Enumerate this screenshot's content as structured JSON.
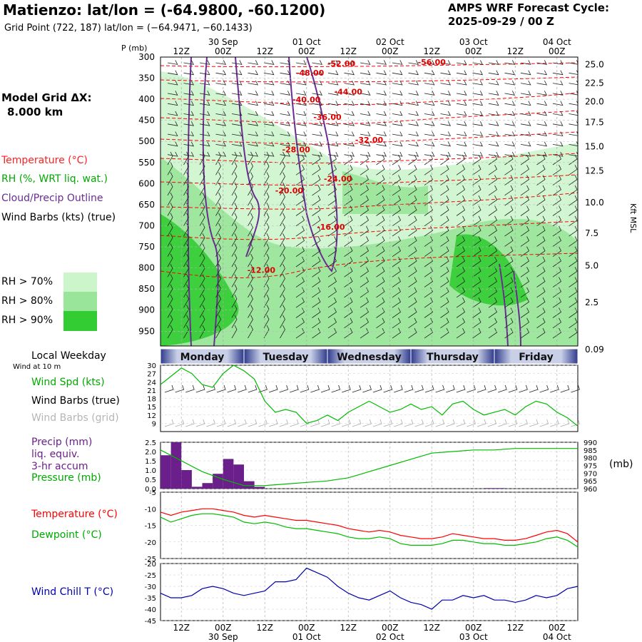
{
  "header": {
    "title": "Matienzo:  lat/lon = (-64.9800, -60.1200)",
    "subtitle": "Grid Point (722, 187) lat/lon = (−64.9471, −60.1433)",
    "cycle_line1": "AMPS WRF Forecast Cycle:",
    "cycle_line2": "2025-09-29 / 00  Z"
  },
  "legend": {
    "model_grid_line1": "Model Grid ΔX:",
    "model_grid_line2": "8.000 km",
    "temperature": "Temperature (°C)",
    "rh": "RH (%, WRT liq. wat.)",
    "cloud": "Cloud/Precip Outline",
    "wind_barbs": "Wind Barbs (kts) (true)",
    "rh70": "RH > 70%",
    "rh80": "RH > 80%",
    "rh90": "RH > 90%",
    "colors": {
      "rh70": "#ccf5cc",
      "rh80": "#99e599",
      "rh90": "#33cc33"
    }
  },
  "axis_labels": {
    "p_label": "P (mb)",
    "kft_label": "Kft MSL",
    "local_weekday": "Local Weekday",
    "wind_at_10m": "Wind at 10 m",
    "wind_spd": "Wind Spd (kts)",
    "wind_barbs_true": "Wind Barbs (true)",
    "wind_barbs_grid": "Wind Barbs (grid)",
    "precip1": "Precip (mm)",
    "precip2": "liq. equiv.",
    "precip3": "3-hr accum",
    "pressure": "Pressure (mb)",
    "mb_unit": "(mb)",
    "temp": "Temperature (°C)",
    "dewpoint": "Dewpoint (°C)",
    "wind_chill": "Wind Chill T (°C)"
  },
  "colors": {
    "temperature": "#ff0000",
    "dewpoint": "#00bb00",
    "cloud": "#6a2c91",
    "precip": "#6a1f8a",
    "windchill": "#0000aa",
    "wind": "#00bb00",
    "pressure": "#00bb00"
  },
  "chart_data": [
    {
      "type": "time-height",
      "x_hours_range": [
        6,
        126
      ],
      "time_ticks": [
        {
          "hour": 12,
          "label": "12Z",
          "date": ""
        },
        {
          "hour": 24,
          "label": "00Z",
          "date": "30 Sep"
        },
        {
          "hour": 36,
          "label": "12Z",
          "date": ""
        },
        {
          "hour": 48,
          "label": "00Z",
          "date": "01 Oct"
        },
        {
          "hour": 60,
          "label": "12Z",
          "date": ""
        },
        {
          "hour": 72,
          "label": "00Z",
          "date": "02 Oct"
        },
        {
          "hour": 84,
          "label": "12Z",
          "date": ""
        },
        {
          "hour": 96,
          "label": "00Z",
          "date": "03 Oct"
        },
        {
          "hour": 108,
          "label": "12Z",
          "date": ""
        },
        {
          "hour": 120,
          "label": "00Z",
          "date": "04 Oct"
        }
      ],
      "pressure_ticks": [
        300,
        350,
        400,
        450,
        500,
        550,
        600,
        650,
        700,
        750,
        800,
        850,
        900,
        950
      ],
      "kft_ticks": [
        {
          "p": 318,
          "label": "25.0"
        },
        {
          "p": 362,
          "label": "22.5"
        },
        {
          "p": 406,
          "label": "20.0"
        },
        {
          "p": 455,
          "label": "17.5"
        },
        {
          "p": 512,
          "label": "15.0"
        },
        {
          "p": 570,
          "label": "12.5"
        },
        {
          "p": 645,
          "label": "10.0"
        },
        {
          "p": 718,
          "label": "7.5"
        },
        {
          "p": 795,
          "label": "5.0"
        },
        {
          "p": 882,
          "label": "2.5"
        },
        {
          "p": 1005,
          "label": "0.09"
        }
      ],
      "temperature_labels": [
        {
          "hour": 58,
          "p": 322,
          "label": "-52.00"
        },
        {
          "hour": 84,
          "p": 319,
          "label": "-56.00"
        },
        {
          "hour": 49,
          "p": 344,
          "label": "-48.00"
        },
        {
          "hour": 60,
          "p": 389,
          "label": "-44.00"
        },
        {
          "hour": 48,
          "p": 407,
          "label": "-40.00"
        },
        {
          "hour": 54,
          "p": 449,
          "label": "-36.00"
        },
        {
          "hour": 66,
          "p": 503,
          "label": "-32.00"
        },
        {
          "hour": 45,
          "p": 526,
          "label": "-28.00"
        },
        {
          "hour": 57,
          "p": 595,
          "label": "-24.00"
        },
        {
          "hour": 43,
          "p": 623,
          "label": "-20.00"
        },
        {
          "hour": 55,
          "p": 709,
          "label": "-16.00"
        },
        {
          "hour": 35,
          "p": 812,
          "label": "-12.00"
        }
      ]
    },
    {
      "type": "line",
      "name": "wind-speed",
      "x_hours": [
        6,
        9,
        12,
        15,
        18,
        21,
        24,
        27,
        30,
        33,
        36,
        39,
        42,
        45,
        48,
        51,
        54,
        57,
        60,
        63,
        66,
        69,
        72,
        75,
        78,
        81,
        84,
        87,
        90,
        93,
        96,
        99,
        102,
        105,
        108,
        111,
        114,
        117,
        120,
        123,
        126
      ],
      "values": [
        23,
        26,
        29,
        27,
        23,
        22,
        27,
        30,
        28,
        25,
        17,
        13,
        14,
        13,
        9,
        10,
        12,
        10,
        13,
        15,
        17,
        15,
        13,
        14,
        16,
        14,
        15,
        12,
        16,
        17,
        14,
        12,
        13,
        14,
        12,
        15,
        17,
        16,
        13,
        11,
        8
      ],
      "ylim": [
        6,
        30
      ],
      "yticks": [
        9,
        12,
        15,
        18,
        21,
        24,
        27,
        30
      ]
    },
    {
      "type": "bar+line",
      "name": "precip-pressure",
      "precip_hours": [
        6,
        9,
        12,
        15,
        18,
        21,
        24,
        27,
        30,
        33,
        36,
        39,
        42,
        45,
        48,
        51,
        54,
        57,
        60,
        63,
        66,
        69,
        72,
        75,
        78,
        81,
        84,
        87,
        90,
        93,
        96,
        99,
        102,
        105,
        108,
        111,
        114,
        117,
        120,
        123
      ],
      "precip_values": [
        1.8,
        2.5,
        1.0,
        0.1,
        0.3,
        0.8,
        1.6,
        1.3,
        0.4,
        0.1,
        0,
        0,
        0,
        0,
        0,
        0,
        0,
        0,
        0,
        0,
        0,
        0,
        0,
        0,
        0,
        0,
        0,
        0,
        0,
        0,
        0,
        0.03,
        0.03,
        0,
        0,
        0,
        0,
        0,
        0,
        0
      ],
      "precip_ylim": [
        0,
        2.5
      ],
      "precip_yticks": [
        "0.0",
        "0.5",
        "1.0",
        "1.5",
        "2.0",
        "2.5"
      ],
      "pressure_hours": [
        6,
        12,
        18,
        24,
        30,
        36,
        42,
        48,
        54,
        60,
        66,
        72,
        78,
        84,
        90,
        96,
        102,
        108,
        114,
        120,
        126
      ],
      "pressure_values": [
        985,
        978,
        971,
        966,
        962,
        962,
        963,
        964,
        965,
        967,
        971,
        975,
        979,
        983,
        984,
        985,
        985,
        986,
        986,
        986,
        986
      ],
      "pressure_ylim": [
        960,
        990
      ],
      "pressure_yticks": [
        "960",
        "965",
        "970",
        "975",
        "980",
        "985",
        "990"
      ]
    },
    {
      "type": "line",
      "name": "temperature-dewpoint",
      "x_hours": [
        6,
        9,
        12,
        15,
        18,
        21,
        24,
        27,
        30,
        33,
        36,
        39,
        42,
        45,
        48,
        51,
        54,
        57,
        60,
        63,
        66,
        69,
        72,
        75,
        78,
        81,
        84,
        87,
        90,
        93,
        96,
        99,
        102,
        105,
        108,
        111,
        114,
        117,
        120,
        123,
        126
      ],
      "series": [
        {
          "name": "Temperature",
          "values": [
            -11,
            -12,
            -11,
            -10.5,
            -10,
            -10,
            -10.5,
            -11,
            -12,
            -12.5,
            -12,
            -12.5,
            -13,
            -13.5,
            -13.5,
            -14,
            -14.5,
            -15,
            -16,
            -16.5,
            -17,
            -16.5,
            -17,
            -18,
            -18.5,
            -19,
            -19,
            -18.5,
            -17.5,
            -18,
            -18.5,
            -19,
            -19,
            -19.5,
            -19.5,
            -19,
            -18,
            -17,
            -16.5,
            -17.5,
            -20
          ]
        },
        {
          "name": "Dewpoint",
          "values": [
            -12.5,
            -14,
            -13,
            -12,
            -11.5,
            -11.5,
            -12,
            -12.5,
            -14,
            -14.5,
            -14,
            -14.5,
            -15.5,
            -16,
            -16,
            -16.5,
            -17,
            -17.5,
            -18.5,
            -19,
            -19,
            -18.5,
            -19,
            -20.5,
            -21,
            -21,
            -21,
            -20.5,
            -19.5,
            -19.5,
            -20,
            -20.5,
            -20.5,
            -21,
            -21,
            -20.5,
            -20,
            -19,
            -18.5,
            -19.5,
            -21.5
          ]
        }
      ],
      "ylim": [
        -25,
        -5
      ],
      "yticks": [
        "-5",
        "-10",
        "-15",
        "-20",
        "-25"
      ]
    },
    {
      "type": "line",
      "name": "wind-chill",
      "x_hours": [
        6,
        9,
        12,
        15,
        18,
        21,
        24,
        27,
        30,
        33,
        36,
        39,
        42,
        45,
        48,
        51,
        54,
        57,
        60,
        63,
        66,
        69,
        72,
        75,
        78,
        81,
        84,
        87,
        90,
        93,
        96,
        99,
        102,
        105,
        108,
        111,
        114,
        117,
        120,
        123,
        126
      ],
      "values": [
        -33,
        -35,
        -35,
        -34,
        -31,
        -30,
        -31,
        -33,
        -34,
        -33,
        -32,
        -28,
        -28,
        -27,
        -22,
        -24,
        -26,
        -30,
        -33,
        -35,
        -36,
        -34,
        -32,
        -35,
        -37,
        -38,
        -40,
        -36,
        -36,
        -34,
        -35,
        -34,
        -36,
        -36,
        -37,
        -36,
        -34,
        -35,
        -34,
        -31,
        -30
      ],
      "ylim": [
        -45,
        -20
      ],
      "yticks": [
        "-20",
        "-25",
        "-30",
        "-35",
        "-40",
        "-45"
      ]
    }
  ],
  "weekday": {
    "days": [
      {
        "label": "Monday",
        "start": 6,
        "end": 30
      },
      {
        "label": "Tuesday",
        "start": 30,
        "end": 54
      },
      {
        "label": "Wednesday",
        "start": 54,
        "end": 78
      },
      {
        "label": "Thursday",
        "start": 78,
        "end": 102
      },
      {
        "label": "Friday",
        "start": 102,
        "end": 126
      }
    ]
  }
}
